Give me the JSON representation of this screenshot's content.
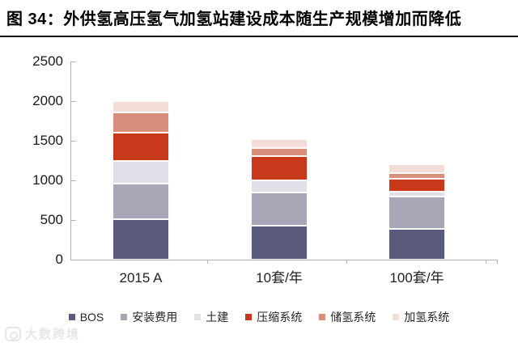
{
  "title": "图 34：外供氢高压氢气加氢站建设成本随生产规模增加而降低",
  "watermark": "大数跨境",
  "chart_data": {
    "type": "bar",
    "stacked": true,
    "title": "图 34：外供氢高压氢气加氢站建设成本随生产规模增加而降低",
    "xlabel": "",
    "ylabel": "",
    "categories": [
      "2015 A",
      "10套/年",
      "100套/年"
    ],
    "series": [
      {
        "name": "BOS",
        "color": "#5a5a7c",
        "values": [
          510,
          430,
          390
        ]
      },
      {
        "name": "安装费用",
        "color": "#a7a7b8",
        "values": [
          450,
          420,
          410
        ]
      },
      {
        "name": "土建",
        "color": "#e0e0e8",
        "values": [
          280,
          150,
          60
        ]
      },
      {
        "name": "压缩系统",
        "color": "#c8391c",
        "values": [
          360,
          310,
          160
        ]
      },
      {
        "name": "储氢系统",
        "color": "#d98d7b",
        "values": [
          260,
          100,
          70
        ]
      },
      {
        "name": "加氢系统",
        "color": "#f2ddd8",
        "values": [
          140,
          110,
          110
        ]
      }
    ],
    "totals": [
      2000,
      1520,
      1200
    ],
    "ylim": [
      0,
      2500
    ],
    "yticks": [
      0,
      500,
      1000,
      1500,
      2000,
      2500
    ],
    "grid": false,
    "legend_position": "bottom",
    "axis_color": "#b3b3b3"
  }
}
